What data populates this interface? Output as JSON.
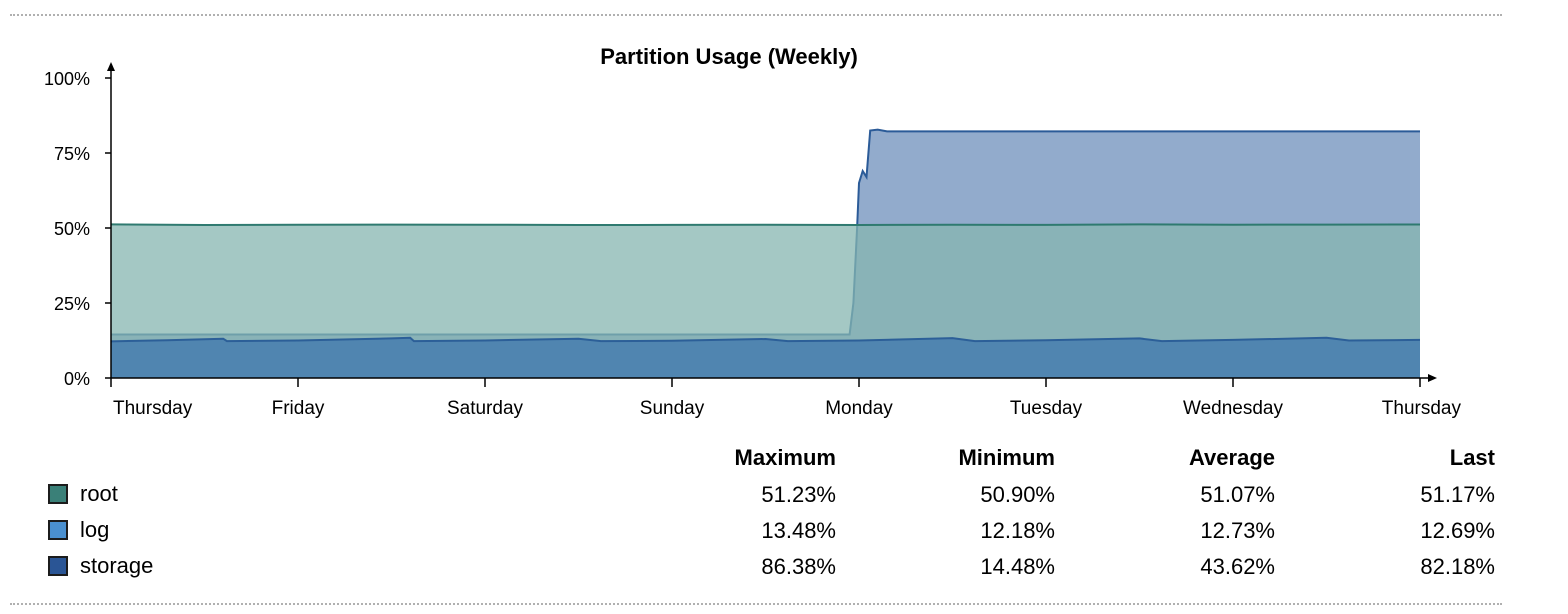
{
  "chart_data": {
    "type": "area",
    "title": "Partition Usage (Weekly)",
    "xlabel": "",
    "ylabel": "",
    "x_tick_labels": [
      "Thursday",
      "Friday",
      "Saturday",
      "Sunday",
      "Monday",
      "Tuesday",
      "Wednesday",
      "Thursday"
    ],
    "y_tick_labels": [
      "0%",
      "25%",
      "50%",
      "75%",
      "100%"
    ],
    "ylim": [
      0,
      100
    ],
    "xlim": [
      0,
      7
    ],
    "grid": false,
    "stacked": false,
    "series": [
      {
        "name": "storage",
        "color": "#2b5b98",
        "fill": "#6d8fbb",
        "points": [
          [
            0,
            14.5
          ],
          [
            3.95,
            14.5
          ],
          [
            3.97,
            25
          ],
          [
            3.99,
            50
          ],
          [
            4.0,
            65
          ],
          [
            4.02,
            69
          ],
          [
            4.04,
            67
          ],
          [
            4.06,
            82.5
          ],
          [
            4.1,
            82.8
          ],
          [
            4.15,
            82.2
          ],
          [
            5,
            82.2
          ],
          [
            6,
            82.2
          ],
          [
            7,
            82.2
          ]
        ]
      },
      {
        "name": "root",
        "color": "#2f7a70",
        "fill": "#86b6b0",
        "points": [
          [
            0,
            51.2
          ],
          [
            0.5,
            51.0
          ],
          [
            1,
            51.1
          ],
          [
            1.5,
            51.15
          ],
          [
            2,
            51.1
          ],
          [
            2.5,
            51.0
          ],
          [
            3,
            51.05
          ],
          [
            3.5,
            51.1
          ],
          [
            4,
            51.0
          ],
          [
            4.5,
            51.1
          ],
          [
            5,
            51.05
          ],
          [
            5.5,
            51.2
          ],
          [
            6,
            51.1
          ],
          [
            6.5,
            51.15
          ],
          [
            7,
            51.17
          ]
        ]
      },
      {
        "name": "log",
        "color": "#2c5f98",
        "fill": "#3d75ad",
        "points": [
          [
            0,
            12.2
          ],
          [
            0.3,
            12.6
          ],
          [
            0.6,
            13.1
          ],
          [
            0.62,
            12.3
          ],
          [
            1,
            12.5
          ],
          [
            1.5,
            13.2
          ],
          [
            1.6,
            13.4
          ],
          [
            1.62,
            12.3
          ],
          [
            2,
            12.5
          ],
          [
            2.5,
            13.1
          ],
          [
            2.62,
            12.3
          ],
          [
            3,
            12.4
          ],
          [
            3.5,
            13.0
          ],
          [
            3.62,
            12.3
          ],
          [
            4,
            12.5
          ],
          [
            4.5,
            13.3
          ],
          [
            4.62,
            12.3
          ],
          [
            5,
            12.6
          ],
          [
            5.5,
            13.2
          ],
          [
            5.62,
            12.3
          ],
          [
            6,
            12.7
          ],
          [
            6.5,
            13.4
          ],
          [
            6.62,
            12.5
          ],
          [
            7,
            12.69
          ]
        ]
      }
    ]
  },
  "legend": {
    "headers": {
      "maximum": "Maximum",
      "minimum": "Minimum",
      "average": "Average",
      "last": "Last"
    },
    "rows": [
      {
        "name": "root",
        "color": "#3a8078",
        "maximum": "51.23%",
        "minimum": "50.90%",
        "average": "51.07%",
        "last": "51.17%"
      },
      {
        "name": "log",
        "color": "#4a90d0",
        "maximum": "13.48%",
        "minimum": "12.18%",
        "average": "12.73%",
        "last": "12.69%"
      },
      {
        "name": "storage",
        "color": "#2a5595",
        "maximum": "86.38%",
        "minimum": "14.48%",
        "average": "43.62%",
        "last": "82.18%"
      }
    ]
  }
}
